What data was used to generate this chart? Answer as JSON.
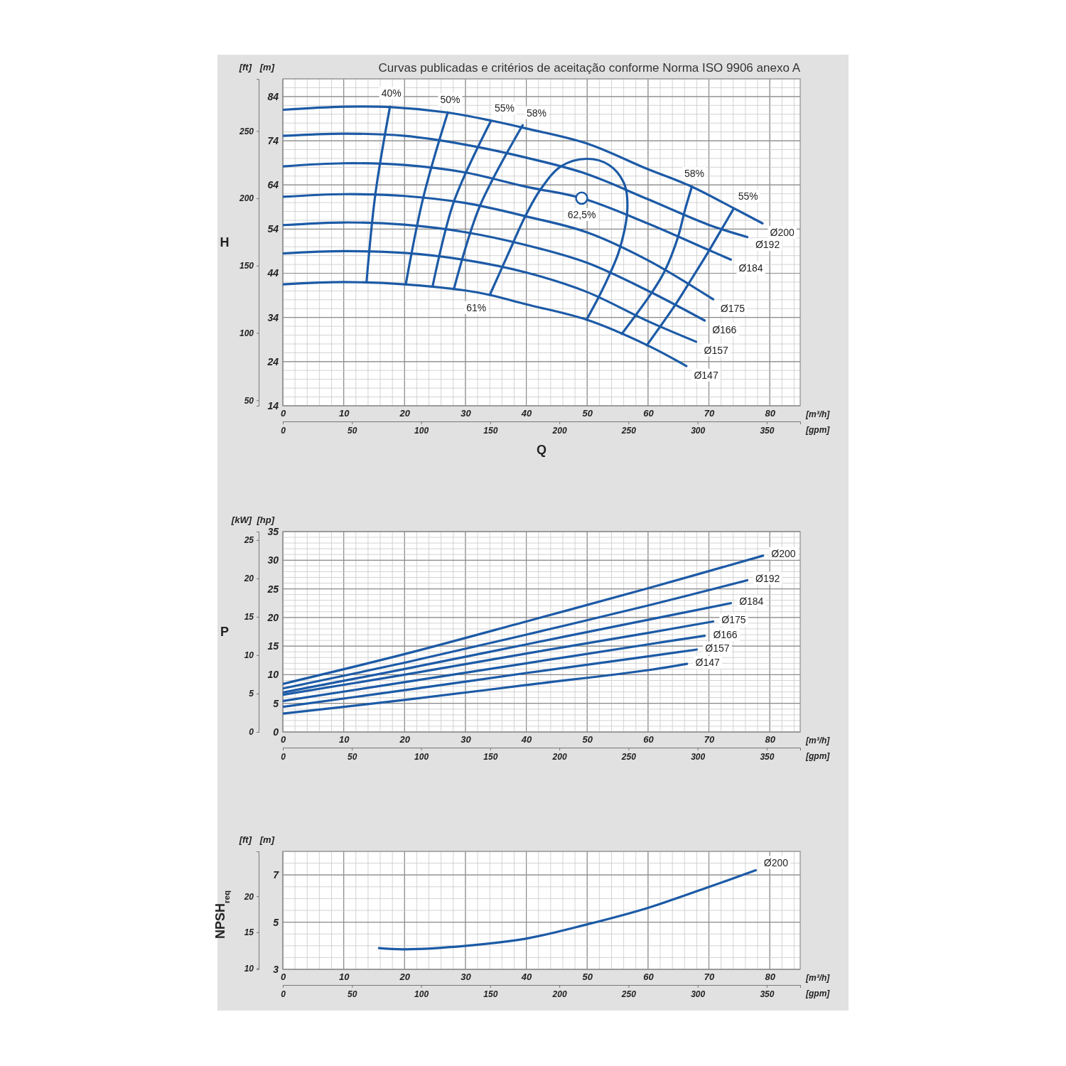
{
  "chart_data": [
    {
      "type": "line",
      "title": "Curvas publicadas e critérios de aceitação conforme Norma ISO 9906 anexo A",
      "xlabel": "[m³/h]",
      "x2label": "[gpm]",
      "ylabel": "[m]",
      "y2label": "[ft]",
      "annotations": [
        "H",
        "Q"
      ],
      "xlim": [
        0,
        85
      ],
      "xticks": [
        0,
        10,
        20,
        30,
        40,
        50,
        60,
        70,
        80
      ],
      "x2lim": [
        0,
        374.2
      ],
      "x2ticks": [
        0,
        50,
        100,
        150,
        200,
        250,
        300,
        350
      ],
      "ylim": [
        14,
        88
      ],
      "yticks": [
        14,
        24,
        34,
        44,
        54,
        64,
        74,
        84
      ],
      "y2lim": [
        45.93,
        288.71
      ],
      "y2ticks": [
        50,
        100,
        150,
        200,
        250
      ],
      "grid": true,
      "series": [
        {
          "name": "Ø200",
          "color": "#1c5aa6",
          "x": [
            0,
            10,
            18,
            27,
            34.4,
            39.9,
            49.9,
            59.9,
            67.2,
            74.1,
            78.8
          ],
          "values": [
            81,
            81.7,
            81.6,
            80.4,
            78.5,
            76.8,
            73.4,
            67.6,
            63.6,
            58.7,
            55.3
          ]
        },
        {
          "name": "Ø192",
          "color": "#1c5aa6",
          "x": [
            0,
            10,
            20,
            30,
            39.9,
            49.9,
            59.9,
            69.9,
            76.3
          ],
          "values": [
            75.1,
            75.6,
            75.1,
            73.1,
            70.2,
            66.5,
            60.8,
            55.0,
            52.2
          ]
        },
        {
          "name": "Ø184",
          "color": "#1c5aa6",
          "x": [
            0,
            10,
            20,
            30,
            39.9,
            49.1,
            59.9,
            69.9,
            73.6
          ],
          "values": [
            68.2,
            68.9,
            68.5,
            66.8,
            63.6,
            61.0,
            55.3,
            49.3,
            47.1
          ]
        },
        {
          "name": "Ø175",
          "color": "#1c5aa6",
          "x": [
            0,
            10,
            20,
            30,
            39.9,
            49.9,
            59.9,
            70.7
          ],
          "values": [
            61.3,
            61.9,
            61.5,
            59.9,
            56.9,
            53.3,
            47.0,
            38.1
          ]
        },
        {
          "name": "Ø166",
          "color": "#1c5aa6",
          "x": [
            0,
            10,
            20,
            30,
            39.9,
            49.9,
            59.9,
            69.3
          ],
          "values": [
            54.9,
            55.5,
            55.0,
            53.3,
            50.4,
            46.4,
            40.1,
            33.3
          ]
        },
        {
          "name": "Ø157",
          "color": "#1c5aa6",
          "x": [
            0,
            10,
            20,
            30,
            39.9,
            49.9,
            59.9,
            67.9
          ],
          "values": [
            48.5,
            49.0,
            48.6,
            47.0,
            44.2,
            39.8,
            33.2,
            28.5
          ]
        },
        {
          "name": "Ø147",
          "color": "#1c5aa6",
          "x": [
            0,
            10,
            20,
            30,
            34,
            39.9,
            49.9,
            59.9,
            66.3
          ],
          "values": [
            41.5,
            42.0,
            41.5,
            40.1,
            39.1,
            37.0,
            33.5,
            27.7,
            23.0
          ]
        },
        {
          "name": "40%",
          "color": "#1c5aa6",
          "x": [
            13.75,
            15.2,
            17.6
          ],
          "values": [
            42.0,
            61.9,
            81.7
          ]
        },
        {
          "name": "50%",
          "color": "#1c5aa6",
          "x": [
            20.2,
            23.1,
            27.1
          ],
          "values": [
            41.5,
            61.3,
            80.4
          ]
        },
        {
          "name": "55%",
          "color": "#1c5aa6",
          "x": [
            24.6,
            28.1,
            34.2
          ],
          "values": [
            41.0,
            60.2,
            78.5
          ]
        },
        {
          "name": "58%",
          "color": "#1c5aa6",
          "x": [
            28.1,
            32.3,
            39.4
          ],
          "values": [
            40.4,
            59.0,
            77.5
          ]
        },
        {
          "name": "61%",
          "color": "#1c5aa6",
          "x": [
            49.9,
            52.0,
            53.8,
            55.3,
            56.6,
            56.1,
            53.6,
            49.9,
            45.7,
            42.4,
            39.9,
            36.9,
            34.0
          ],
          "values": [
            33.5,
            38.9,
            44.1,
            49.3,
            58.5,
            64.2,
            68.5,
            69.9,
            68.2,
            63.1,
            57.1,
            48.0,
            39.1
          ]
        },
        {
          "name": "58%",
          "color": "#1c5aa6",
          "x": [
            55.7,
            60.7,
            62.7,
            64.9,
            66.1,
            67.2
          ],
          "values": [
            30.3,
            39.8,
            44.4,
            52.1,
            58.5,
            63.6
          ]
        },
        {
          "name": "55%",
          "color": "#1c5aa6",
          "x": [
            59.8,
            64.5,
            66.6,
            70.1,
            72.4,
            74.1
          ],
          "values": [
            27.7,
            36.9,
            41.5,
            49.3,
            54.7,
            58.7
          ]
        },
        {
          "name": "62,5%",
          "type": "scatter",
          "marker": "circle",
          "color": "#1c5aa6",
          "x": [
            49.1
          ],
          "values": [
            61.0
          ]
        }
      ]
    },
    {
      "type": "line",
      "xlabel": "[m³/h]",
      "x2label": "[gpm]",
      "ylabel": "[hp]",
      "y2label": "[kW]",
      "annotations": [
        "P"
      ],
      "xlim": [
        0,
        85
      ],
      "xticks": [
        0,
        10,
        20,
        30,
        40,
        50,
        60,
        70,
        80
      ],
      "x2lim": [
        0,
        374.2
      ],
      "x2ticks": [
        0,
        50,
        100,
        150,
        200,
        250,
        300,
        350
      ],
      "ylim": [
        0,
        35
      ],
      "yticks": [
        0,
        5,
        10,
        15,
        20,
        25,
        30,
        35
      ],
      "y2lim": [
        0,
        26.1
      ],
      "y2ticks": [
        0,
        5,
        10,
        15,
        20,
        25
      ],
      "grid": true,
      "series": [
        {
          "name": "Ø200",
          "color": "#1c5aa6",
          "x": [
            0,
            20,
            40,
            60,
            78.9
          ],
          "values": [
            8.4,
            13.6,
            19.3,
            25.1,
            30.8
          ]
        },
        {
          "name": "Ø192",
          "color": "#1c5aa6",
          "x": [
            0,
            20,
            40,
            60,
            76.3
          ],
          "values": [
            7.6,
            12.1,
            17.0,
            22.1,
            26.5
          ]
        },
        {
          "name": "Ø184",
          "color": "#1c5aa6",
          "x": [
            0,
            20,
            40,
            60,
            73.6
          ],
          "values": [
            6.9,
            11.0,
            15.3,
            19.6,
            22.5
          ]
        },
        {
          "name": "Ø175",
          "color": "#1c5aa6",
          "x": [
            0,
            20,
            40,
            60,
            70.7
          ],
          "values": [
            6.5,
            10.0,
            13.7,
            17.3,
            19.3
          ]
        },
        {
          "name": "Ø166",
          "color": "#1c5aa6",
          "x": [
            0,
            20,
            40,
            60,
            69.3
          ],
          "values": [
            5.4,
            8.7,
            12.0,
            15.3,
            16.8
          ]
        },
        {
          "name": "Ø157",
          "color": "#1c5aa6",
          "x": [
            0,
            20,
            40,
            60,
            68.0
          ],
          "values": [
            4.4,
            7.3,
            10.3,
            13.2,
            14.4
          ]
        },
        {
          "name": "Ø147",
          "color": "#1c5aa6",
          "x": [
            0,
            20,
            40,
            60,
            66.4
          ],
          "values": [
            3.2,
            5.6,
            8.2,
            10.8,
            11.9
          ]
        }
      ]
    },
    {
      "type": "line",
      "xlabel": "[m³/h]",
      "x2label": "[gpm]",
      "ylabel": "[m]",
      "y2label": "[ft]",
      "annotations": [
        "NPSH$_{req}$"
      ],
      "xlim": [
        0,
        85
      ],
      "xticks": [
        0,
        10,
        20,
        30,
        40,
        50,
        60,
        70,
        80
      ],
      "x2lim": [
        0,
        374.2
      ],
      "x2ticks": [
        0,
        50,
        100,
        150,
        200,
        250,
        300,
        350
      ],
      "ylim": [
        3,
        8
      ],
      "yticks": [
        3,
        5,
        7
      ],
      "y2lim": [
        9.84,
        26.25
      ],
      "y2ticks": [
        10,
        15,
        20
      ],
      "grid": true,
      "series": [
        {
          "name": "Ø200",
          "color": "#1c5aa6",
          "x": [
            15.8,
            20,
            30.1,
            39.9,
            49.9,
            59.9,
            70.1,
            77.7
          ],
          "values": [
            3.9,
            3.85,
            4.0,
            4.3,
            4.9,
            5.6,
            6.5,
            7.2
          ]
        }
      ]
    }
  ]
}
